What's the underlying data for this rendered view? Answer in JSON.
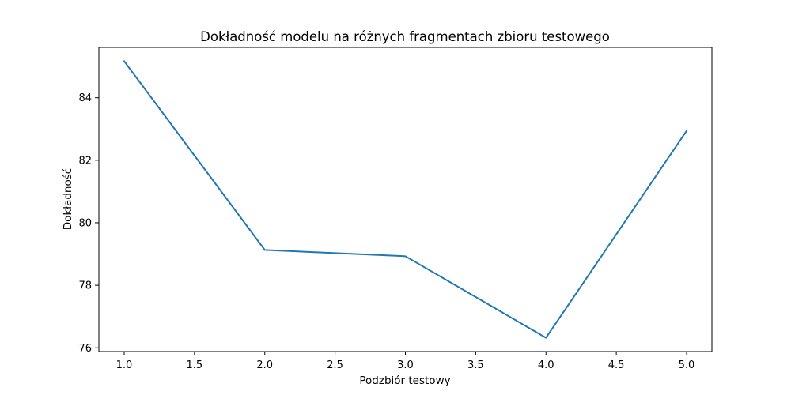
{
  "chart_data": {
    "type": "line",
    "title": "Dokładność modelu na różnych fragmentach zbioru testowego",
    "xlabel": "Podzbiór testowy",
    "ylabel": "Dokładność",
    "x": [
      1,
      2,
      3,
      4,
      5
    ],
    "series": [
      {
        "values": [
          85.17,
          79.13,
          78.93,
          76.32,
          82.94
        ],
        "color": "#1f77b4"
      }
    ],
    "xlim": [
      0.82,
      5.18
    ],
    "ylim": [
      75.88,
      85.61
    ],
    "xticks": [
      1.0,
      1.5,
      2.0,
      2.5,
      3.0,
      3.5,
      4.0,
      4.5,
      5.0
    ],
    "xtick_labels": [
      "1.0",
      "1.5",
      "2.0",
      "2.5",
      "3.0",
      "3.5",
      "4.0",
      "4.5",
      "5.0"
    ],
    "yticks": [
      76,
      78,
      80,
      82,
      84
    ],
    "ytick_labels": [
      "76",
      "78",
      "80",
      "82",
      "84"
    ],
    "grid": false,
    "legend": "none"
  }
}
